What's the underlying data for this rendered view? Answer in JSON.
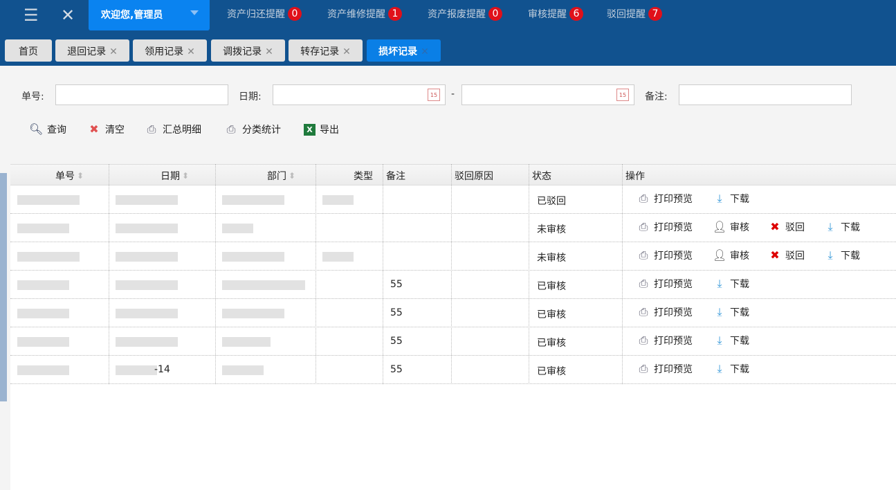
{
  "header": {
    "welcome": "欢迎您,管理员",
    "reminders": [
      {
        "label": "资产归还提醒",
        "count": "0"
      },
      {
        "label": "资产维修提醒",
        "count": "1"
      },
      {
        "label": "资产报废提醒",
        "count": "0"
      },
      {
        "label": "审核提醒",
        "count": "6"
      },
      {
        "label": "驳回提醒",
        "count": "7"
      }
    ]
  },
  "tabs": [
    {
      "label": "首页"
    },
    {
      "label": "退回记录"
    },
    {
      "label": "领用记录"
    },
    {
      "label": "调拨记录"
    },
    {
      "label": "转存记录"
    },
    {
      "label": "损坏记录",
      "active": true
    }
  ],
  "filters": {
    "order_no_label": "单号:",
    "date_label": "日期:",
    "date_sep": "-",
    "remark_label": "备注:",
    "order_no": "",
    "date_from": "",
    "date_to": "",
    "remark": ""
  },
  "toolbar": {
    "query": "查询",
    "clear": "清空",
    "summary": "汇总明细",
    "category_stats": "分类统计",
    "export": "导出"
  },
  "table": {
    "columns": [
      "单号",
      "日期",
      "部门",
      "类型",
      "备注",
      "驳回原因",
      "状态",
      "操作"
    ],
    "rows": [
      {
        "date": "",
        "remark": "",
        "reject_reason": "",
        "status": "已驳回",
        "actions": [
          "打印预览",
          "下载"
        ]
      },
      {
        "date": "",
        "remark": "",
        "reject_reason": "",
        "status": "未审核",
        "actions": [
          "打印预览",
          "审核",
          "驳回",
          "下载"
        ]
      },
      {
        "date": "",
        "remark": "",
        "reject_reason": "",
        "status": "未审核",
        "actions": [
          "打印预览",
          "审核",
          "驳回",
          "下载"
        ]
      },
      {
        "date": "",
        "remark": "55",
        "reject_reason": "",
        "status": "已审核",
        "actions": [
          "打印预览",
          "下载"
        ]
      },
      {
        "date": "",
        "remark": "55",
        "reject_reason": "",
        "status": "已审核",
        "actions": [
          "打印预览",
          "下载"
        ]
      },
      {
        "date": "",
        "remark": "55",
        "reject_reason": "",
        "status": "已审核",
        "actions": [
          "打印预览",
          "下载"
        ]
      },
      {
        "date": "-14",
        "remark": "55",
        "reject_reason": "",
        "status": "已审核",
        "actions": [
          "打印预览",
          "下载"
        ]
      }
    ]
  },
  "colors": {
    "header_bg": "#11528f",
    "accent": "#0a83f0",
    "badge": "#e0101a"
  }
}
